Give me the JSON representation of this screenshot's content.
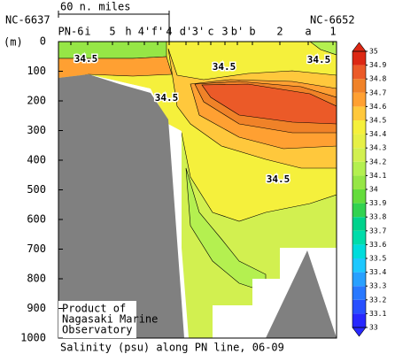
{
  "chart_data": {
    "type": "contour",
    "title": "Salinity (psu) along PN line, 06-09",
    "y_label": "(m)",
    "left_label": "NC-6637",
    "right_label": "NC-6652",
    "scale_label": "60 n. miles",
    "credit": [
      "Product of",
      "Nagasaki Marine",
      "Observatory"
    ],
    "stations": [
      "PN-6",
      "i",
      "5",
      "h",
      "4'",
      "f'",
      "4",
      "d'",
      "3'",
      "c",
      "3",
      "b'",
      "b",
      "2",
      "a",
      "1"
    ],
    "ylim": [
      0,
      1000
    ],
    "yticks": [
      0,
      100,
      200,
      300,
      400,
      500,
      600,
      700,
      800,
      900,
      1000
    ],
    "colorbar": {
      "lim": [
        33,
        35
      ],
      "ticks": [
        33,
        33.1,
        33.2,
        33.3,
        33.4,
        33.5,
        33.6,
        33.7,
        33.8,
        33.9,
        34,
        34.1,
        34.2,
        34.3,
        34.4,
        34.5,
        34.6,
        34.7,
        34.8,
        34.9,
        35
      ],
      "colors": [
        "#2828ff",
        "#2850ff",
        "#2878ff",
        "#28a0ff",
        "#1ec8ff",
        "#00dcdc",
        "#00dcaa",
        "#00d28c",
        "#32d250",
        "#64dc3c",
        "#96e646",
        "#b4f050",
        "#d2f050",
        "#e6f046",
        "#f5f03c",
        "#ffc83c",
        "#ffa032",
        "#f08228",
        "#eb5a28",
        "#dc2814"
      ]
    },
    "regions": [
      {
        "level": 34.2
      },
      {
        "level": 34.4
      },
      {
        "level": 34.1
      },
      {
        "level": 34.5
      },
      {
        "level": 34.6
      },
      {
        "level": 34.7
      },
      {
        "level": 34.8
      },
      {
        "level": 34.0
      },
      {
        "level": 34.6
      },
      {
        "level": 34.1
      }
    ],
    "contour_labels": [
      34.5,
      34.5,
      34.5,
      34.5,
      34.5
    ]
  }
}
